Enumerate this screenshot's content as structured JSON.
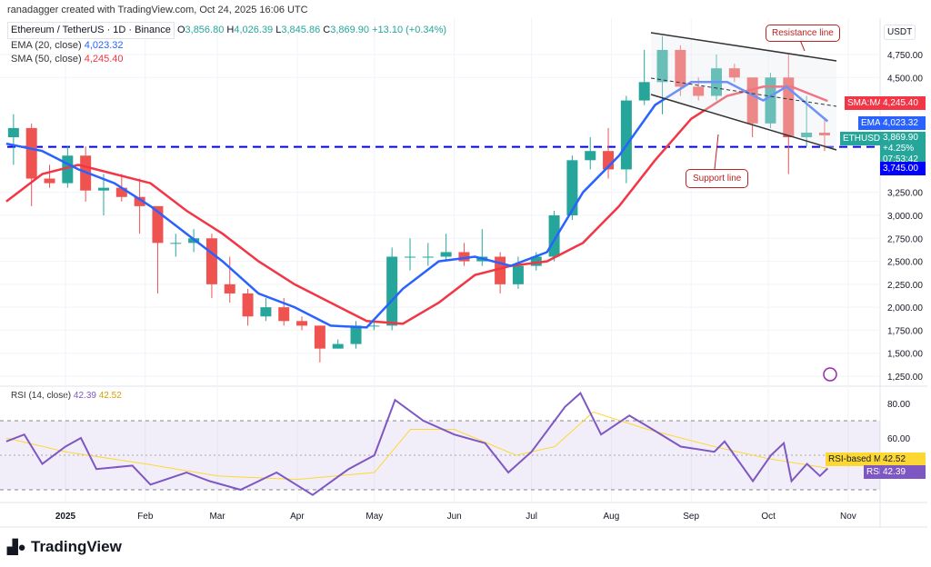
{
  "header": {
    "credit": "ranadagger created with TradingView.com, Oct 24, 2025 16:06 UTC",
    "symbol": "Ethereum / TetherUS · 1D · Binance",
    "o": "3,856.80",
    "h": "4,026.39",
    "l": "3,845.86",
    "c": "3,869.90",
    "change": "+13.10 (+0.34%)",
    "ema_label": "EMA (20, close)",
    "ema_value": "4,023.32",
    "sma_label": "SMA (50, close)",
    "sma_value": "4,245.40",
    "rsi_label": "RSI (14, close)",
    "rsi_value": "42.39",
    "rsi_ma_value": "42.52"
  },
  "axis": {
    "currency": "USDT",
    "price_ticks": [
      "4,750.00",
      "4,500.00",
      "3,250.00",
      "3,000.00",
      "2,750.00",
      "2,500.00",
      "2,250.00",
      "2,000.00",
      "1,750.00",
      "1,500.00",
      "1,250.00"
    ],
    "rsi_ticks": [
      "80.00",
      "60.00"
    ],
    "time_ticks": [
      {
        "label": "2025",
        "date": "2025-01-01"
      },
      {
        "label": "Feb",
        "date": "2025-02-01"
      },
      {
        "label": "Mar",
        "date": "2025-03-01"
      },
      {
        "label": "Apr",
        "date": "2025-04-01"
      },
      {
        "label": "May",
        "date": "2025-05-01"
      },
      {
        "label": "Jun",
        "date": "2025-06-01"
      },
      {
        "label": "Jul",
        "date": "2025-07-01"
      },
      {
        "label": "Aug",
        "date": "2025-08-01"
      },
      {
        "label": "Sep",
        "date": "2025-09-01"
      },
      {
        "label": "Oct",
        "date": "2025-10-01"
      },
      {
        "label": "Nov",
        "date": "2025-11-01"
      }
    ]
  },
  "tags": {
    "sma_name": "SMA:MA",
    "sma_val": "4,245.40",
    "ema_name": "EMA",
    "ema_val": "4,023.32",
    "sym_name": "ETHUSDT",
    "price": "3,869.90",
    "pct": "+4.25%",
    "countdown": "07:53:42",
    "level": "3,745.00",
    "rsi_ma_name": "RSI-based MA",
    "rsi_ma_val": "42.52",
    "rsi_name": "RSI",
    "rsi_val": "42.39"
  },
  "annotations": {
    "resistance": "Resistance line",
    "support": "Support line",
    "horizontal_level": 3745
  },
  "colors": {
    "up": "#26a69a",
    "down": "#ef5350",
    "ema": "#2962ff",
    "sma": "#f23645",
    "rsi": "#7e57c2",
    "rsi_ma": "#fdd835",
    "level": "#0000ff"
  },
  "footer": {
    "brand": "TradingView"
  },
  "chart_data": {
    "type": "candlestick",
    "timeframe_note": "weekly approximation of daily candles",
    "ylim": [
      1150,
      5050
    ],
    "candles": [
      [
        "2024-12-09",
        3850,
        4100,
        3550,
        3950
      ],
      [
        "2024-12-16",
        3950,
        4000,
        3100,
        3400
      ],
      [
        "2024-12-23",
        3400,
        3550,
        3300,
        3350
      ],
      [
        "2024-12-30",
        3350,
        3750,
        3300,
        3650
      ],
      [
        "2025-01-06",
        3650,
        3750,
        3150,
        3270
      ],
      [
        "2025-01-13",
        3270,
        3450,
        3000,
        3300
      ],
      [
        "2025-01-20",
        3300,
        3450,
        3150,
        3200
      ],
      [
        "2025-01-27",
        3200,
        3400,
        2800,
        3100
      ],
      [
        "2025-02-03",
        3100,
        3100,
        2150,
        2700
      ],
      [
        "2025-02-10",
        2700,
        2800,
        2550,
        2700
      ],
      [
        "2025-02-17",
        2700,
        2850,
        2600,
        2750
      ],
      [
        "2025-02-24",
        2750,
        2800,
        2100,
        2250
      ],
      [
        "2025-03-03",
        2250,
        2550,
        2050,
        2150
      ],
      [
        "2025-03-10",
        2150,
        2200,
        1800,
        1900
      ],
      [
        "2025-03-17",
        1900,
        2100,
        1850,
        2000
      ],
      [
        "2025-03-24",
        2000,
        2100,
        1800,
        1850
      ],
      [
        "2025-03-31",
        1850,
        1900,
        1750,
        1800
      ],
      [
        "2025-04-07",
        1800,
        1800,
        1400,
        1550
      ],
      [
        "2025-04-14",
        1550,
        1650,
        1550,
        1600
      ],
      [
        "2025-04-21",
        1600,
        1850,
        1550,
        1800
      ],
      [
        "2025-04-28",
        1800,
        1850,
        1750,
        1800
      ],
      [
        "2025-05-05",
        1800,
        2650,
        1750,
        2550
      ],
      [
        "2025-05-12",
        2550,
        2750,
        2400,
        2550
      ],
      [
        "2025-05-19",
        2550,
        2700,
        2450,
        2550
      ],
      [
        "2025-05-26",
        2550,
        2800,
        2500,
        2600
      ],
      [
        "2025-06-02",
        2600,
        2700,
        2450,
        2500
      ],
      [
        "2025-06-09",
        2500,
        2850,
        2450,
        2550
      ],
      [
        "2025-06-16",
        2550,
        2600,
        2150,
        2250
      ],
      [
        "2025-06-23",
        2250,
        2550,
        2200,
        2450
      ],
      [
        "2025-06-30",
        2450,
        2600,
        2400,
        2550
      ],
      [
        "2025-07-07",
        2550,
        3050,
        2500,
        3000
      ],
      [
        "2025-07-14",
        3000,
        3650,
        2950,
        3600
      ],
      [
        "2025-07-21",
        3600,
        3850,
        3500,
        3700
      ],
      [
        "2025-07-28",
        3700,
        3950,
        3400,
        3500
      ],
      [
        "2025-08-04",
        3500,
        4300,
        3350,
        4250
      ],
      [
        "2025-08-11",
        4250,
        4800,
        4200,
        4450
      ],
      [
        "2025-08-18",
        4450,
        4950,
        4100,
        4800
      ],
      [
        "2025-08-25",
        4800,
        4850,
        4300,
        4400
      ],
      [
        "2025-09-01",
        4400,
        4500,
        4250,
        4300
      ],
      [
        "2025-09-08",
        4300,
        4750,
        4250,
        4600
      ],
      [
        "2025-09-15",
        4600,
        4650,
        4450,
        4500
      ],
      [
        "2025-09-22",
        4500,
        4500,
        3850,
        4000
      ],
      [
        "2025-09-29",
        4000,
        4550,
        3950,
        4500
      ],
      [
        "2025-10-06",
        4500,
        4750,
        3450,
        3850
      ],
      [
        "2025-10-13",
        3850,
        4300,
        3750,
        3900
      ],
      [
        "2025-10-20",
        3900,
        4050,
        3700,
        3870
      ]
    ],
    "ema20": [
      [
        "2024-12-09",
        3780
      ],
      [
        "2024-12-23",
        3700
      ],
      [
        "2025-01-06",
        3500
      ],
      [
        "2025-01-20",
        3350
      ],
      [
        "2025-02-03",
        3100
      ],
      [
        "2025-02-17",
        2800
      ],
      [
        "2025-03-03",
        2500
      ],
      [
        "2025-03-17",
        2150
      ],
      [
        "2025-03-31",
        2000
      ],
      [
        "2025-04-14",
        1800
      ],
      [
        "2025-04-28",
        1780
      ],
      [
        "2025-05-12",
        2200
      ],
      [
        "2025-05-26",
        2500
      ],
      [
        "2025-06-09",
        2550
      ],
      [
        "2025-06-23",
        2450
      ],
      [
        "2025-07-07",
        2600
      ],
      [
        "2025-07-21",
        3250
      ],
      [
        "2025-08-04",
        3650
      ],
      [
        "2025-08-18",
        4200
      ],
      [
        "2025-09-01",
        4450
      ],
      [
        "2025-09-15",
        4450
      ],
      [
        "2025-09-29",
        4250
      ],
      [
        "2025-10-08",
        4400
      ],
      [
        "2025-10-24",
        4023
      ]
    ],
    "sma50": [
      [
        "2024-12-09",
        3150
      ],
      [
        "2024-12-23",
        3450
      ],
      [
        "2025-01-06",
        3550
      ],
      [
        "2025-01-20",
        3450
      ],
      [
        "2025-02-03",
        3350
      ],
      [
        "2025-02-17",
        3050
      ],
      [
        "2025-03-03",
        2800
      ],
      [
        "2025-03-17",
        2500
      ],
      [
        "2025-03-31",
        2250
      ],
      [
        "2025-04-14",
        2050
      ],
      [
        "2025-04-28",
        1850
      ],
      [
        "2025-05-12",
        1820
      ],
      [
        "2025-05-26",
        2050
      ],
      [
        "2025-06-09",
        2350
      ],
      [
        "2025-06-23",
        2450
      ],
      [
        "2025-07-07",
        2500
      ],
      [
        "2025-07-21",
        2700
      ],
      [
        "2025-08-04",
        3100
      ],
      [
        "2025-08-18",
        3600
      ],
      [
        "2025-09-01",
        4050
      ],
      [
        "2025-09-15",
        4300
      ],
      [
        "2025-09-29",
        4400
      ],
      [
        "2025-10-10",
        4400
      ],
      [
        "2025-10-24",
        4245
      ]
    ],
    "rsi": [
      [
        "2024-12-09",
        58
      ],
      [
        "2024-12-16",
        62
      ],
      [
        "2024-12-23",
        45
      ],
      [
        "2025-01-01",
        55
      ],
      [
        "2025-01-07",
        60
      ],
      [
        "2025-01-13",
        42
      ],
      [
        "2025-01-27",
        44
      ],
      [
        "2025-02-03",
        33
      ],
      [
        "2025-02-17",
        40
      ],
      [
        "2025-02-26",
        35
      ],
      [
        "2025-03-10",
        30
      ],
      [
        "2025-03-24",
        40
      ],
      [
        "2025-04-07",
        27
      ],
      [
        "2025-04-21",
        42
      ],
      [
        "2025-05-01",
        50
      ],
      [
        "2025-05-09",
        82
      ],
      [
        "2025-05-20",
        70
      ],
      [
        "2025-06-01",
        62
      ],
      [
        "2025-06-13",
        57
      ],
      [
        "2025-06-22",
        40
      ],
      [
        "2025-07-01",
        52
      ],
      [
        "2025-07-14",
        78
      ],
      [
        "2025-07-20",
        86
      ],
      [
        "2025-07-28",
        62
      ],
      [
        "2025-08-08",
        73
      ],
      [
        "2025-08-17",
        65
      ],
      [
        "2025-08-28",
        55
      ],
      [
        "2025-09-10",
        52
      ],
      [
        "2025-09-14",
        58
      ],
      [
        "2025-09-25",
        35
      ],
      [
        "2025-10-02",
        50
      ],
      [
        "2025-10-07",
        57
      ],
      [
        "2025-10-10",
        35
      ],
      [
        "2025-10-16",
        45
      ],
      [
        "2025-10-21",
        38
      ],
      [
        "2025-10-24",
        42.39
      ]
    ],
    "rsi_ma": [
      [
        "2024-12-09",
        60
      ],
      [
        "2025-01-01",
        52
      ],
      [
        "2025-02-01",
        45
      ],
      [
        "2025-03-01",
        38
      ],
      [
        "2025-04-01",
        36
      ],
      [
        "2025-05-01",
        40
      ],
      [
        "2025-05-15",
        65
      ],
      [
        "2025-06-01",
        65
      ],
      [
        "2025-06-25",
        50
      ],
      [
        "2025-07-10",
        55
      ],
      [
        "2025-07-25",
        75
      ],
      [
        "2025-08-15",
        65
      ],
      [
        "2025-09-10",
        55
      ],
      [
        "2025-10-01",
        48
      ],
      [
        "2025-10-24",
        42.52
      ]
    ],
    "rsi_band": [
      30,
      70
    ]
  }
}
